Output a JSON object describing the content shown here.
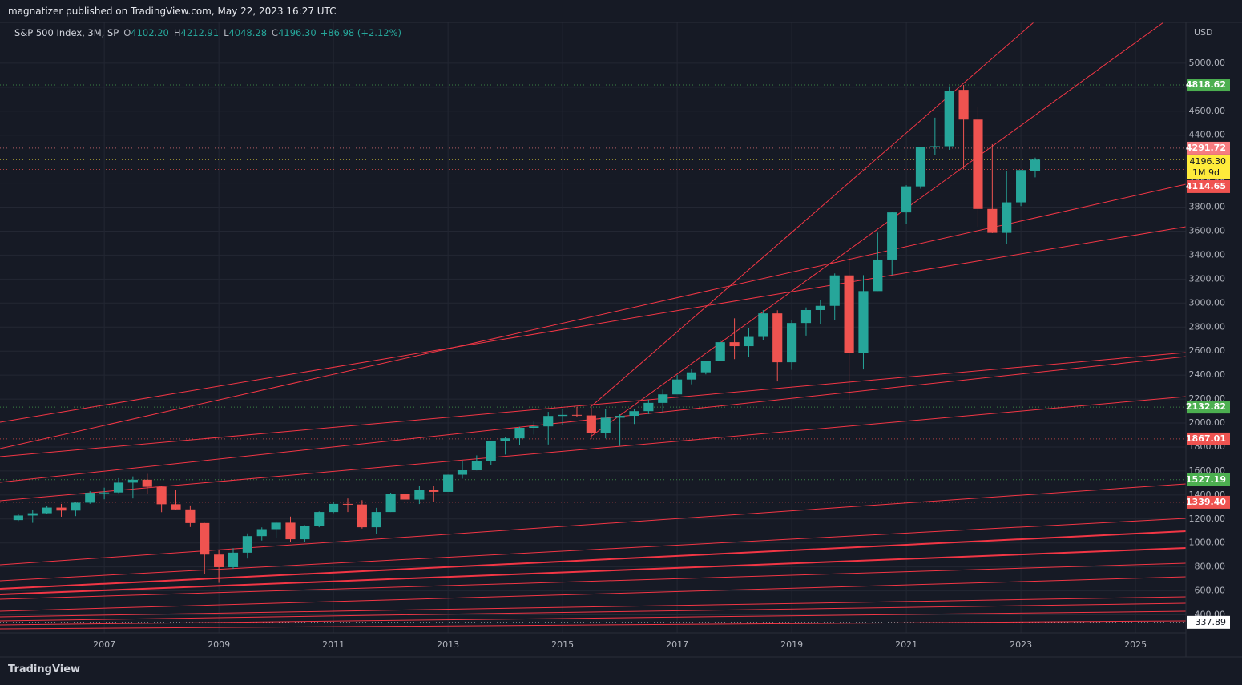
{
  "header": {
    "publisher": "magnatizer published on TradingView.com, May 22, 2023 16:27 UTC",
    "brand": "TradingView"
  },
  "legend": {
    "symbol": "S&P 500 Index, 3M, SP",
    "items": [
      {
        "key": "O",
        "value": "4102.20"
      },
      {
        "key": "H",
        "value": "4212.91"
      },
      {
        "key": "L",
        "value": "4048.28"
      },
      {
        "key": "C",
        "value": "4196.30"
      }
    ],
    "change": "+86.98 (+2.12%)"
  },
  "chart_data": {
    "type": "candlestick",
    "currency": "USD",
    "up_color": "#26a69a",
    "down_color": "#ef5350",
    "x": [
      2005.5,
      2005.75,
      2006,
      2006.25,
      2006.5,
      2006.75,
      2007,
      2007.25,
      2007.5,
      2007.75,
      2008,
      2008.25,
      2008.5,
      2008.75,
      2009,
      2009.25,
      2009.5,
      2009.75,
      2010,
      2010.25,
      2010.5,
      2010.75,
      2011,
      2011.25,
      2011.5,
      2011.75,
      2012,
      2012.25,
      2012.5,
      2012.75,
      2013,
      2013.25,
      2013.5,
      2013.75,
      2014,
      2014.25,
      2014.5,
      2014.75,
      2015,
      2015.25,
      2015.5,
      2015.75,
      2016,
      2016.25,
      2016.5,
      2016.75,
      2017,
      2017.25,
      2017.5,
      2017.75,
      2018,
      2018.25,
      2018.5,
      2018.75,
      2019,
      2019.25,
      2019.5,
      2019.75,
      2020,
      2020.25,
      2020.5,
      2020.75,
      2021,
      2021.25,
      2021.5,
      2021.75,
      2022,
      2022.25,
      2022.5,
      2022.75,
      2023,
      2023.25
    ],
    "open": [
      1191,
      1229,
      1248,
      1295,
      1270,
      1336,
      1418,
      1421,
      1503,
      1527,
      1468,
      1323,
      1280,
      1166,
      903,
      798,
      919,
      1057,
      1115,
      1169,
      1031,
      1141,
      1258,
      1326,
      1321,
      1131,
      1258,
      1408,
      1362,
      1441,
      1426,
      1569,
      1606,
      1682,
      1848,
      1872,
      1960,
      1972,
      2059,
      2068,
      2063,
      1920,
      2044,
      2060,
      2099,
      2168,
      2239,
      2363,
      2423,
      2519,
      2674,
      2641,
      2718,
      2914,
      2507,
      2834,
      2942,
      2977,
      3231,
      2585,
      3100,
      3363,
      3756,
      3973,
      4298,
      4308,
      4778,
      4530,
      3785,
      3586,
      3840,
      4102.2
    ],
    "high": [
      1245,
      1275,
      1310,
      1326,
      1340,
      1431,
      1461,
      1540,
      1555,
      1576,
      1471,
      1440,
      1313,
      1167,
      944,
      956,
      1080,
      1130,
      1180,
      1220,
      1148,
      1263,
      1344,
      1371,
      1357,
      1293,
      1419,
      1422,
      1475,
      1475,
      1570,
      1688,
      1730,
      1849,
      1884,
      1968,
      2019,
      2093,
      2119,
      2134,
      2132,
      2116,
      2073,
      2120,
      2194,
      2278,
      2401,
      2454,
      2519,
      2694,
      2873,
      2791,
      2941,
      2940,
      2860,
      2964,
      3028,
      3247,
      3394,
      3233,
      3588,
      3760,
      3983,
      4302,
      4546,
      4808,
      4819,
      4637,
      4325,
      4101,
      4110,
      4212.91
    ],
    "low": [
      1183,
      1168,
      1245,
      1219,
      1224,
      1327,
      1364,
      1416,
      1371,
      1406,
      1257,
      1272,
      1133,
      741,
      667,
      784,
      870,
      1020,
      1045,
      1011,
      1011,
      1131,
      1249,
      1258,
      1120,
      1075,
      1258,
      1267,
      1325,
      1343,
      1426,
      1536,
      1605,
      1646,
      1737,
      1814,
      1904,
      1821,
      1981,
      2048,
      1867,
      1872,
      1810,
      1992,
      2074,
      2084,
      2245,
      2323,
      2406,
      2520,
      2533,
      2553,
      2691,
      2347,
      2444,
      2729,
      2822,
      2856,
      2192,
      2447,
      3101,
      3234,
      3662,
      3954,
      4234,
      4278,
      4115,
      3637,
      3584,
      3492,
      3809,
      4048.28
    ],
    "close": [
      1229,
      1248,
      1295,
      1270,
      1336,
      1418,
      1421,
      1503,
      1527,
      1468,
      1323,
      1280,
      1166,
      903,
      798,
      919,
      1057,
      1115,
      1169,
      1031,
      1141,
      1258,
      1326,
      1321,
      1131,
      1258,
      1408,
      1362,
      1441,
      1426,
      1569,
      1606,
      1682,
      1848,
      1872,
      1960,
      1972,
      2059,
      2068,
      2063,
      1920,
      2044,
      2060,
      2099,
      2168,
      2239,
      2363,
      2423,
      2519,
      2674,
      2641,
      2718,
      2914,
      2507,
      2834,
      2942,
      2977,
      3231,
      2585,
      3100,
      3363,
      3756,
      3973,
      4298,
      4308,
      4766,
      4530,
      3785,
      3586,
      3840,
      4109,
      4196.3
    ],
    "xlim": [
      2005.18,
      2025.88
    ],
    "xticks": [
      2007,
      2009,
      2011,
      2013,
      2015,
      2017,
      2019,
      2021,
      2023,
      2025
    ],
    "ylim": [
      250,
      5340
    ],
    "yticks": [
      {
        "value": 400,
        "label": "400.00"
      },
      {
        "value": 600,
        "label": "600.00"
      },
      {
        "value": 800,
        "label": "800.00"
      },
      {
        "value": 1000,
        "label": "1000.00"
      },
      {
        "value": 1200,
        "label": "1200.00"
      },
      {
        "value": 1400,
        "label": "1400.00"
      },
      {
        "value": 1600,
        "label": "1600.00"
      },
      {
        "value": 1800,
        "label": "1800.00"
      },
      {
        "value": 2000,
        "label": "2000.00"
      },
      {
        "value": 2200,
        "label": "2200.00"
      },
      {
        "value": 2400,
        "label": "2400.00"
      },
      {
        "value": 2600,
        "label": "2600.00"
      },
      {
        "value": 2800,
        "label": "2800.00"
      },
      {
        "value": 3000,
        "label": "3000.00"
      },
      {
        "value": 3200,
        "label": "3200.00"
      },
      {
        "value": 3400,
        "label": "3400.00"
      },
      {
        "value": 3600,
        "label": "3600.00"
      },
      {
        "value": 3800,
        "label": "3800.00"
      },
      {
        "value": 4000,
        "label": "4000.00"
      },
      {
        "value": 4200,
        "label": "4200.00"
      },
      {
        "value": 4400,
        "label": "4400.00"
      },
      {
        "value": 4600,
        "label": "4600.00"
      },
      {
        "value": 4800,
        "label": "4800.00"
      },
      {
        "value": 5000,
        "label": "5000.00"
      }
    ],
    "price_labels": [
      {
        "value": 4818.62,
        "color": "#4caf50"
      },
      {
        "value": 4291.72,
        "color": "#f77c80"
      },
      {
        "value": {
          "value": 4196.3,
          "label": "4196.30"
        },
        "color": "#ffeb3b",
        "countdown": "1M 9d"
      },
      {
        "value": 4114.65,
        "color": "#ef5350"
      },
      {
        "value": 2132.82,
        "color": "#4caf50"
      },
      {
        "value": 1867.01,
        "color": "#ef5350"
      },
      {
        "value": 1527.19,
        "color": "#4caf50"
      },
      {
        "value": {
          "value": 1339.4,
          "label": "1339.40"
        },
        "color": "#ef5350"
      },
      {
        "value": 337.89,
        "color": "#ffffff"
      }
    ]
  }
}
